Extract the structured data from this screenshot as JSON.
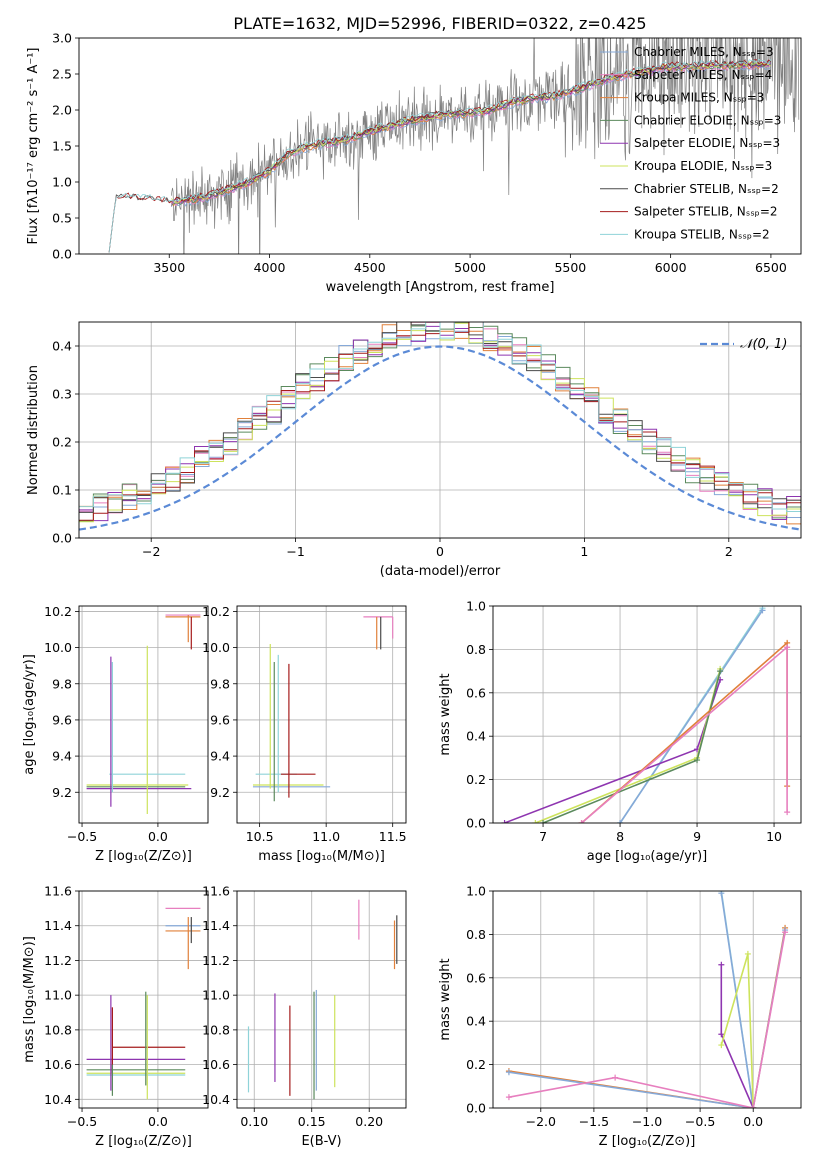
{
  "figure_title": "PLATE=1632, MJD=52996, FIBERID=0322, z=0.425",
  "model_colors": {
    "chabrier_miles": "#86a9d8",
    "salpeter_miles": "#e77fbf",
    "kroupa_miles": "#e0803a",
    "chabrier_elodie": "#5b8a5d",
    "salpeter_elodie": "#8e35b0",
    "kroupa_elodie": "#cde35c",
    "chabrier_stelib": "#4a4a4a",
    "salpeter_stelib": "#a51c1c",
    "kroupa_stelib": "#8fd3d8",
    "data": "#7f7f7f",
    "normal": "#5b8ad6"
  },
  "chart_data": [
    {
      "type": "line",
      "title": "PLATE=1632, MJD=52996, FIBERID=0322, z=0.425",
      "xlabel": "wavelength [Angstrom, rest frame]",
      "ylabel": "Flux [fλ10⁻¹⁷ erg cm⁻² s⁻¹ A⁻¹]",
      "xlim": [
        3050,
        6650
      ],
      "ylim": [
        0,
        3.0
      ],
      "xticks": [
        3500,
        4000,
        4500,
        5000,
        5500,
        6000,
        6500
      ],
      "yticks": [
        0.0,
        0.5,
        1.0,
        1.5,
        2.0,
        2.5,
        3.0
      ],
      "legend": [
        "Chabrier MILES, Nₛₛₚ=3",
        "Salpeter MILES, Nₛₛₚ=4",
        "Kroupa MILES, Nₛₛₚ=3",
        "Chabrier ELODIE, Nₛₛₚ=3",
        "Salpeter ELODIE, Nₛₛₚ=3",
        "Kroupa ELODIE, Nₛₛₚ=3",
        "Chabrier STELIB, Nₛₛₚ=2",
        "Salpeter STELIB, Nₛₛₚ=2",
        "Kroupa STELIB, Nₛₛₚ=2"
      ],
      "legend_position": "top-right",
      "continuum": {
        "x": [
          3200,
          3300,
          3400,
          3500,
          3600,
          3700,
          3800,
          3900,
          4000,
          4100,
          4200,
          4300,
          4400,
          4500,
          4600,
          4700,
          4800,
          4900,
          5000,
          5100,
          5200,
          5300,
          5400,
          5500,
          5600,
          5700,
          5800,
          5900,
          6000,
          6100,
          6200,
          6300,
          6400,
          6500
        ],
        "y": [
          0.78,
          0.78,
          0.75,
          0.72,
          0.75,
          0.8,
          0.9,
          1.0,
          1.15,
          1.4,
          1.5,
          1.55,
          1.6,
          1.7,
          1.78,
          1.85,
          1.9,
          1.95,
          1.95,
          2.0,
          2.1,
          2.15,
          2.18,
          2.25,
          2.35,
          2.45,
          2.5,
          2.55,
          2.6,
          2.6,
          2.62,
          2.62,
          2.63,
          2.63
        ]
      }
    },
    {
      "type": "histogram",
      "xlabel": "(data-model)/error",
      "ylabel": "Normed distribution",
      "xlim": [
        -2.5,
        2.5
      ],
      "ylim": [
        0,
        0.45
      ],
      "xticks": [
        -2,
        -1,
        0,
        1,
        2
      ],
      "yticks": [
        0.0,
        0.1,
        0.2,
        0.3,
        0.4
      ],
      "normal_label": "𝒩(0, 1)",
      "bin_width": 0.1,
      "bin_start": -2.5
    },
    {
      "type": "errorbar",
      "xlabel": "Z [log₁₀(Z/Z⊙)]",
      "ylabel": "age  [log₁₀(age/yr)]",
      "xlim": [
        -0.52,
        0.33
      ],
      "ylim": [
        9.03,
        10.23
      ],
      "xticks": [
        -0.5,
        0.0
      ],
      "yticks": [
        9.2,
        9.4,
        9.6,
        9.8,
        10.0,
        10.2
      ]
    },
    {
      "type": "errorbar",
      "xlabel": "mass [log₁₀(M/M⊙)]",
      "xlim": [
        10.33,
        11.6
      ],
      "ylim": [
        9.03,
        10.23
      ],
      "xticks": [
        10.5,
        11.0,
        11.5
      ],
      "yticks": [
        9.2,
        9.4,
        9.6,
        9.8,
        10.0,
        10.2
      ]
    },
    {
      "type": "line",
      "xlabel": "age  [log₁₀(age/yr)]",
      "ylabel": "mass weight",
      "xlim": [
        6.35,
        10.35
      ],
      "ylim": [
        0,
        1.0
      ],
      "xticks": [
        7,
        8,
        9,
        10
      ],
      "yticks": [
        0.0,
        0.2,
        0.4,
        0.6,
        0.8,
        1.0
      ]
    },
    {
      "type": "errorbar",
      "xlabel": "Z [log₁₀(Z/Z⊙)]",
      "ylabel": "mass [log₁₀(M/M⊙)]",
      "xlim": [
        -0.52,
        0.33
      ],
      "ylim": [
        10.35,
        11.6
      ],
      "xticks": [
        -0.5,
        0.0
      ],
      "yticks": [
        10.4,
        10.6,
        10.8,
        11.0,
        11.2,
        11.4,
        11.6
      ]
    },
    {
      "type": "errorbar",
      "xlabel": "E(B-V)",
      "xlim": [
        0.085,
        0.232
      ],
      "ylim": [
        10.35,
        11.6
      ],
      "xticks": [
        0.1,
        0.15,
        0.2
      ],
      "yticks": [
        10.4,
        10.6,
        10.8,
        11.0,
        11.2,
        11.4,
        11.6
      ]
    },
    {
      "type": "line",
      "xlabel": "Z [log₁₀(Z/Z⊙)]",
      "ylabel": "mass weight",
      "xlim": [
        -2.45,
        0.45
      ],
      "ylim": [
        0,
        1.0
      ],
      "xticks": [
        -2.0,
        -1.5,
        -1.0,
        -0.5,
        0.0
      ],
      "yticks": [
        0.0,
        0.2,
        0.4,
        0.6,
        0.8,
        1.0
      ]
    }
  ]
}
